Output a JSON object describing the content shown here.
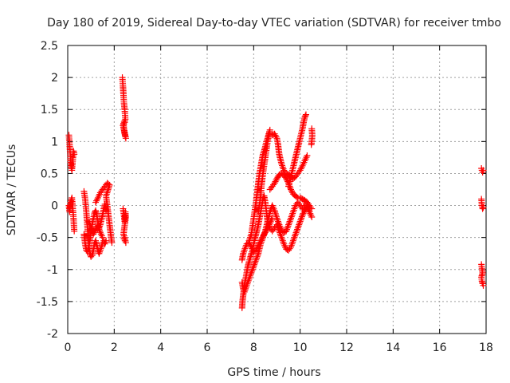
{
  "colors": {
    "series": "#ff0000",
    "grid": "#a0a0a0",
    "axis": "#000000",
    "text": "#222222"
  },
  "chart_data": {
    "type": "scatter",
    "title": "Day 180 of 2019, Sidereal Day-to-day VTEC variation (SDTVAR) for receiver tmbo",
    "xlabel": "GPS time / hours",
    "ylabel": "SDTVAR / TECUs",
    "xlim": [
      0,
      18
    ],
    "ylim": [
      -2,
      2.5
    ],
    "xticks": [
      "0",
      "2",
      "4",
      "6",
      "8",
      "10",
      "12",
      "14",
      "16",
      "18"
    ],
    "yticks": [
      "-2",
      "-1.5",
      "-1",
      "-0.5",
      "0",
      "0.5",
      "1",
      "1.5",
      "2",
      "2.5"
    ],
    "grid": true,
    "marker": "plus",
    "series": [
      {
        "name": "SDTVAR",
        "segments": [
          [
            [
              0.05,
              1.1
            ],
            [
              0.08,
              0.95
            ],
            [
              0.1,
              0.85
            ],
            [
              0.12,
              0.7
            ],
            [
              0.15,
              0.6
            ],
            [
              0.18,
              0.55
            ],
            [
              0.22,
              0.72
            ],
            [
              0.25,
              0.85
            ],
            [
              0.28,
              0.8
            ]
          ],
          [
            [
              0.05,
              0.0
            ],
            [
              0.08,
              -0.1
            ],
            [
              0.12,
              0.05
            ],
            [
              0.18,
              0.12
            ],
            [
              0.22,
              -0.05
            ],
            [
              0.25,
              -0.2
            ],
            [
              0.28,
              -0.4
            ]
          ],
          [
            [
              0.7,
              0.22
            ],
            [
              0.75,
              0.1
            ],
            [
              0.8,
              -0.1
            ],
            [
              0.85,
              -0.35
            ],
            [
              0.9,
              -0.6
            ],
            [
              0.95,
              -0.75
            ],
            [
              1.0,
              -0.8
            ],
            [
              1.05,
              -0.78
            ],
            [
              1.1,
              -0.7
            ],
            [
              1.15,
              -0.6
            ],
            [
              1.2,
              -0.55
            ],
            [
              1.25,
              -0.62
            ],
            [
              1.3,
              -0.7
            ],
            [
              1.35,
              -0.75
            ],
            [
              1.4,
              -0.7
            ],
            [
              1.45,
              -0.65
            ],
            [
              1.5,
              -0.58
            ],
            [
              1.55,
              -0.55
            ],
            [
              1.6,
              -0.6
            ],
            [
              1.65,
              -0.55
            ]
          ],
          [
            [
              0.7,
              -0.45
            ],
            [
              0.75,
              -0.6
            ],
            [
              0.8,
              -0.7
            ],
            [
              0.85,
              -0.72
            ],
            [
              0.9,
              -0.65
            ],
            [
              0.95,
              -0.55
            ],
            [
              1.0,
              -0.42
            ],
            [
              1.05,
              -0.3
            ],
            [
              1.1,
              -0.2
            ],
            [
              1.15,
              -0.12
            ],
            [
              1.2,
              -0.08
            ],
            [
              1.25,
              -0.15
            ],
            [
              1.3,
              -0.28
            ],
            [
              1.35,
              -0.35
            ],
            [
              1.4,
              -0.3
            ],
            [
              1.45,
              -0.22
            ],
            [
              1.5,
              -0.15
            ],
            [
              1.55,
              -0.05
            ],
            [
              1.6,
              0.02
            ],
            [
              1.65,
              -0.08
            ]
          ],
          [
            [
              1.2,
              0.05
            ],
            [
              1.3,
              0.12
            ],
            [
              1.4,
              0.2
            ],
            [
              1.5,
              0.25
            ],
            [
              1.6,
              0.3
            ],
            [
              1.7,
              0.35
            ],
            [
              1.8,
              0.32
            ],
            [
              1.65,
              0.15
            ],
            [
              1.75,
              -0.15
            ],
            [
              1.85,
              -0.45
            ],
            [
              1.9,
              -0.58
            ]
          ],
          [
            [
              0.9,
              -0.25
            ],
            [
              1.0,
              -0.35
            ],
            [
              1.1,
              -0.45
            ],
            [
              1.2,
              -0.38
            ],
            [
              1.3,
              -0.32
            ],
            [
              1.4,
              -0.42
            ],
            [
              1.5,
              -0.5
            ]
          ],
          [
            [
              2.35,
              2.0
            ],
            [
              2.38,
              1.85
            ],
            [
              2.4,
              1.72
            ],
            [
              2.42,
              1.6
            ],
            [
              2.45,
              1.5
            ],
            [
              2.48,
              1.35
            ],
            [
              2.4,
              1.28
            ],
            [
              2.42,
              1.2
            ],
            [
              2.45,
              1.12
            ],
            [
              2.5,
              1.05
            ],
            [
              2.38,
              1.25
            ],
            [
              2.45,
              1.3
            ]
          ],
          [
            [
              2.38,
              -0.05
            ],
            [
              2.42,
              -0.15
            ],
            [
              2.45,
              -0.25
            ],
            [
              2.48,
              -0.1
            ],
            [
              2.5,
              -0.18
            ],
            [
              2.4,
              -0.45
            ],
            [
              2.45,
              -0.5
            ],
            [
              2.5,
              -0.58
            ],
            [
              2.42,
              -0.52
            ]
          ],
          [
            [
              7.5,
              -1.6
            ],
            [
              7.52,
              -1.5
            ],
            [
              7.55,
              -1.4
            ],
            [
              7.6,
              -1.25
            ],
            [
              7.65,
              -1.15
            ],
            [
              7.7,
              -1.05
            ],
            [
              7.75,
              -0.95
            ],
            [
              7.8,
              -0.88
            ],
            [
              7.85,
              -0.82
            ],
            [
              7.9,
              -0.75
            ],
            [
              7.95,
              -0.7
            ],
            [
              8.0,
              -0.6
            ],
            [
              8.05,
              -0.52
            ],
            [
              8.1,
              -0.45
            ],
            [
              8.15,
              -0.38
            ],
            [
              8.2,
              -0.3
            ],
            [
              8.25,
              -0.2
            ],
            [
              8.3,
              -0.1
            ],
            [
              8.35,
              0.0
            ],
            [
              8.4,
              0.1
            ],
            [
              8.45,
              0.15
            ],
            [
              8.5,
              0.05
            ],
            [
              8.55,
              -0.1
            ],
            [
              8.6,
              -0.25
            ],
            [
              8.7,
              -0.35
            ],
            [
              8.8,
              -0.4
            ],
            [
              8.9,
              -0.35
            ],
            [
              9.0,
              -0.3
            ],
            [
              9.1,
              -0.4
            ],
            [
              9.2,
              -0.5
            ],
            [
              9.3,
              -0.6
            ],
            [
              9.4,
              -0.68
            ],
            [
              9.5,
              -0.7
            ],
            [
              9.6,
              -0.65
            ],
            [
              9.7,
              -0.55
            ],
            [
              9.8,
              -0.45
            ],
            [
              9.9,
              -0.35
            ],
            [
              10.0,
              -0.25
            ],
            [
              10.1,
              -0.15
            ],
            [
              10.2,
              -0.08
            ],
            [
              10.3,
              -0.02
            ],
            [
              10.4,
              -0.1
            ],
            [
              10.5,
              -0.18
            ]
          ],
          [
            [
              7.5,
              -1.2
            ],
            [
              7.55,
              -1.3
            ],
            [
              7.6,
              -1.35
            ],
            [
              7.7,
              -1.25
            ],
            [
              7.8,
              -1.15
            ],
            [
              7.9,
              -1.05
            ],
            [
              8.0,
              -0.95
            ],
            [
              8.1,
              -0.85
            ],
            [
              8.2,
              -0.75
            ],
            [
              8.3,
              -0.6
            ],
            [
              8.4,
              -0.5
            ],
            [
              8.5,
              -0.4
            ],
            [
              8.6,
              -0.25
            ],
            [
              8.7,
              -0.1
            ],
            [
              8.8,
              0.0
            ],
            [
              8.9,
              -0.08
            ],
            [
              9.0,
              -0.2
            ],
            [
              9.1,
              -0.3
            ],
            [
              9.2,
              -0.38
            ],
            [
              9.3,
              -0.42
            ],
            [
              9.4,
              -0.4
            ],
            [
              9.5,
              -0.3
            ],
            [
              9.6,
              -0.2
            ],
            [
              9.7,
              -0.1
            ],
            [
              9.8,
              0.0
            ],
            [
              9.9,
              0.05
            ],
            [
              10.0,
              0.0
            ],
            [
              10.1,
              -0.05
            ],
            [
              10.2,
              0.0
            ],
            [
              10.3,
              0.05
            ],
            [
              10.4,
              -0.05
            ]
          ],
          [
            [
              7.5,
              -0.85
            ],
            [
              7.55,
              -0.75
            ],
            [
              7.6,
              -0.7
            ],
            [
              7.7,
              -0.6
            ],
            [
              7.8,
              -0.58
            ],
            [
              7.9,
              -0.65
            ],
            [
              8.0,
              -0.72
            ],
            [
              8.1,
              -0.7
            ],
            [
              8.2,
              -0.62
            ],
            [
              8.3,
              -0.55
            ],
            [
              8.4,
              -0.48
            ],
            [
              8.5,
              -0.42
            ],
            [
              8.6,
              -0.35
            ],
            [
              8.7,
              -0.28
            ],
            [
              8.8,
              -0.2
            ]
          ],
          [
            [
              7.8,
              -0.55
            ],
            [
              7.9,
              -0.45
            ],
            [
              8.0,
              -0.2
            ],
            [
              8.1,
              0.05
            ],
            [
              8.15,
              0.2
            ],
            [
              8.2,
              0.35
            ],
            [
              8.25,
              0.5
            ],
            [
              8.3,
              0.6
            ],
            [
              8.35,
              0.7
            ],
            [
              8.4,
              0.8
            ],
            [
              8.45,
              0.85
            ],
            [
              8.5,
              0.92
            ],
            [
              8.55,
              1.0
            ],
            [
              8.6,
              1.05
            ],
            [
              8.65,
              1.12
            ],
            [
              8.7,
              1.18
            ],
            [
              8.6,
              1.0
            ],
            [
              8.5,
              0.75
            ],
            [
              8.4,
              0.5
            ],
            [
              8.35,
              0.35
            ],
            [
              8.3,
              0.15
            ],
            [
              8.25,
              0.0
            ],
            [
              8.2,
              -0.1
            ]
          ],
          [
            [
              8.7,
              0.25
            ],
            [
              8.8,
              0.3
            ],
            [
              8.9,
              0.35
            ],
            [
              9.0,
              0.42
            ],
            [
              9.1,
              0.48
            ],
            [
              9.2,
              0.5
            ],
            [
              9.3,
              0.48
            ],
            [
              9.4,
              0.42
            ],
            [
              9.5,
              0.35
            ],
            [
              9.6,
              0.25
            ],
            [
              9.7,
              0.18
            ],
            [
              9.8,
              0.15
            ],
            [
              9.9,
              0.12
            ],
            [
              10.0,
              0.12
            ],
            [
              10.1,
              0.1
            ],
            [
              10.2,
              0.08
            ],
            [
              10.3,
              0.05
            ],
            [
              10.4,
              0.0
            ],
            [
              10.5,
              -0.05
            ]
          ],
          [
            [
              8.8,
              1.1
            ],
            [
              8.9,
              1.12
            ],
            [
              9.0,
              1.05
            ],
            [
              9.05,
              0.95
            ],
            [
              9.1,
              0.8
            ],
            [
              9.2,
              0.65
            ],
            [
              9.3,
              0.55
            ],
            [
              9.4,
              0.5
            ],
            [
              9.5,
              0.48
            ],
            [
              9.6,
              0.45
            ],
            [
              9.7,
              0.42
            ],
            [
              9.8,
              0.45
            ],
            [
              9.9,
              0.5
            ],
            [
              10.0,
              0.55
            ],
            [
              10.1,
              0.62
            ],
            [
              10.2,
              0.7
            ],
            [
              10.3,
              0.78
            ]
          ],
          [
            [
              9.5,
              0.3
            ],
            [
              9.6,
              0.45
            ],
            [
              9.7,
              0.6
            ],
            [
              9.8,
              0.75
            ],
            [
              9.9,
              0.9
            ],
            [
              10.0,
              1.05
            ],
            [
              10.1,
              1.2
            ],
            [
              10.15,
              1.3
            ],
            [
              10.2,
              1.38
            ],
            [
              10.25,
              1.42
            ]
          ],
          [
            [
              10.5,
              1.2
            ],
            [
              10.52,
              1.1
            ],
            [
              10.5,
              1.0
            ],
            [
              10.48,
              0.95
            ]
          ],
          [
            [
              17.8,
              0.58
            ],
            [
              17.82,
              0.55
            ],
            [
              17.85,
              0.52
            ],
            [
              17.88,
              0.55
            ]
          ],
          [
            [
              17.8,
              0.1
            ],
            [
              17.82,
              0.0
            ],
            [
              17.85,
              -0.05
            ],
            [
              17.88,
              -0.03
            ]
          ],
          [
            [
              17.8,
              -0.92
            ],
            [
              17.82,
              -0.98
            ],
            [
              17.85,
              -1.05
            ],
            [
              17.8,
              -1.12
            ],
            [
              17.82,
              -1.18
            ],
            [
              17.85,
              -1.22
            ],
            [
              17.88,
              -1.25
            ]
          ]
        ]
      }
    ]
  }
}
